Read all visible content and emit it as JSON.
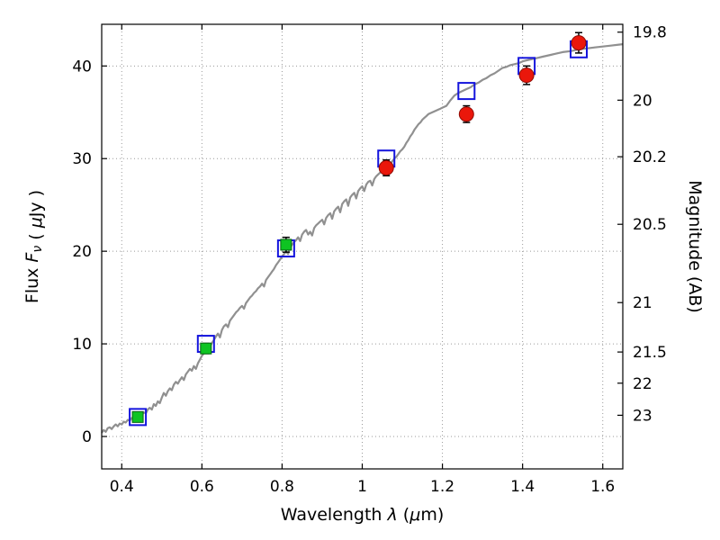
{
  "chart_data": {
    "type": "line",
    "title": "",
    "xlabel_parts": [
      {
        "t": "Wavelength  ",
        "style": "normal"
      },
      {
        "t": "λ",
        "style": "italic"
      },
      {
        "t": " (",
        "style": "normal"
      },
      {
        "t": "μ",
        "style": "italic"
      },
      {
        "t": "m)",
        "style": "normal"
      }
    ],
    "ylabel_left_parts": [
      {
        "t": "Flux  ",
        "style": "normal"
      },
      {
        "t": "F",
        "style": "italic"
      },
      {
        "t": "ν",
        "style": "italic-sub"
      },
      {
        "t": " ( ",
        "style": "normal"
      },
      {
        "t": "μ",
        "style": "italic"
      },
      {
        "t": "Jy )",
        "style": "normal"
      }
    ],
    "ylabel_right_parts": [
      {
        "t": "Magnitude (AB)",
        "style": "normal"
      }
    ],
    "xlim": [
      0.35,
      1.65
    ],
    "ylim": [
      -3.5,
      44.5
    ],
    "x_ticks": [
      0.4,
      0.6,
      0.8,
      1,
      1.2,
      1.4,
      1.6
    ],
    "x_tick_labels": [
      "0.4",
      "0.6",
      "0.8",
      "1",
      "1.2",
      "1.4",
      "1.6"
    ],
    "y_ticks_left": [
      0,
      10,
      20,
      30,
      40
    ],
    "y_tick_labels_left": [
      "0",
      "10",
      "20",
      "30",
      "40"
    ],
    "y_ticks_right_mag": [
      19.8,
      20,
      20.2,
      20.5,
      21,
      21.5,
      22,
      23
    ],
    "y_tick_labels_right": [
      "19.8",
      "20",
      "20.2",
      "20.5",
      "21",
      "21.5",
      "22",
      "23"
    ],
    "mag_zeropoint": 23.9,
    "grid": true,
    "colors": {
      "spectrum": "#909090",
      "model": "#1414dd",
      "optical": "#0ec422",
      "optical_edge": "#056310",
      "nir": "#ea170b",
      "nir_edge": "#8e0b04",
      "errorbar": "#000000",
      "grid": "#9a9a9a",
      "axis": "#000000",
      "background": "#ffffff"
    },
    "series": [
      {
        "name": "model-spectrum",
        "type": "line",
        "points": [
          [
            0.35,
            0.4
          ],
          [
            0.355,
            0.7
          ],
          [
            0.36,
            0.5
          ],
          [
            0.365,
            0.9
          ],
          [
            0.37,
            1.0
          ],
          [
            0.375,
            0.8
          ],
          [
            0.38,
            1.1
          ],
          [
            0.385,
            1.3
          ],
          [
            0.39,
            1.1
          ],
          [
            0.395,
            1.4
          ],
          [
            0.4,
            1.3
          ],
          [
            0.405,
            1.6
          ],
          [
            0.41,
            1.5
          ],
          [
            0.415,
            1.8
          ],
          [
            0.42,
            1.7
          ],
          [
            0.425,
            2.0
          ],
          [
            0.43,
            1.9
          ],
          [
            0.435,
            2.2
          ],
          [
            0.44,
            2.1
          ],
          [
            0.445,
            2.4
          ],
          [
            0.45,
            2.3
          ],
          [
            0.455,
            2.6
          ],
          [
            0.46,
            2.5
          ],
          [
            0.465,
            2.9
          ],
          [
            0.47,
            3.1
          ],
          [
            0.475,
            2.9
          ],
          [
            0.48,
            3.5
          ],
          [
            0.485,
            3.3
          ],
          [
            0.49,
            3.8
          ],
          [
            0.495,
            3.6
          ],
          [
            0.5,
            4.2
          ],
          [
            0.505,
            4.7
          ],
          [
            0.51,
            4.4
          ],
          [
            0.515,
            4.9
          ],
          [
            0.52,
            5.2
          ],
          [
            0.525,
            5.0
          ],
          [
            0.53,
            5.6
          ],
          [
            0.535,
            5.9
          ],
          [
            0.54,
            5.7
          ],
          [
            0.545,
            6.1
          ],
          [
            0.55,
            6.4
          ],
          [
            0.555,
            6.1
          ],
          [
            0.56,
            6.7
          ],
          [
            0.565,
            7.0
          ],
          [
            0.57,
            7.3
          ],
          [
            0.575,
            7.1
          ],
          [
            0.58,
            7.6
          ],
          [
            0.585,
            7.3
          ],
          [
            0.59,
            7.9
          ],
          [
            0.595,
            8.3
          ],
          [
            0.6,
            8.7
          ],
          [
            0.605,
            9.0
          ],
          [
            0.61,
            9.3
          ],
          [
            0.615,
            9.0
          ],
          [
            0.62,
            9.7
          ],
          [
            0.625,
            10.1
          ],
          [
            0.63,
            10.4
          ],
          [
            0.635,
            10.8
          ],
          [
            0.64,
            11.1
          ],
          [
            0.645,
            10.7
          ],
          [
            0.65,
            11.5
          ],
          [
            0.655,
            11.9
          ],
          [
            0.66,
            12.1
          ],
          [
            0.665,
            11.8
          ],
          [
            0.67,
            12.5
          ],
          [
            0.675,
            12.8
          ],
          [
            0.68,
            13.1
          ],
          [
            0.685,
            13.4
          ],
          [
            0.69,
            13.6
          ],
          [
            0.695,
            13.9
          ],
          [
            0.7,
            14.1
          ],
          [
            0.705,
            13.8
          ],
          [
            0.71,
            14.4
          ],
          [
            0.715,
            14.7
          ],
          [
            0.72,
            15.0
          ],
          [
            0.725,
            15.2
          ],
          [
            0.73,
            15.5
          ],
          [
            0.735,
            15.7
          ],
          [
            0.74,
            16.0
          ],
          [
            0.745,
            16.2
          ],
          [
            0.75,
            16.5
          ],
          [
            0.755,
            16.2
          ],
          [
            0.76,
            16.9
          ],
          [
            0.765,
            17.2
          ],
          [
            0.77,
            17.5
          ],
          [
            0.775,
            17.8
          ],
          [
            0.78,
            18.1
          ],
          [
            0.785,
            18.5
          ],
          [
            0.79,
            18.8
          ],
          [
            0.795,
            19.1
          ],
          [
            0.8,
            19.4
          ],
          [
            0.805,
            19.7
          ],
          [
            0.81,
            20.0
          ],
          [
            0.815,
            19.7
          ],
          [
            0.82,
            20.4
          ],
          [
            0.825,
            20.7
          ],
          [
            0.83,
            21.0
          ],
          [
            0.835,
            21.2
          ],
          [
            0.84,
            21.5
          ],
          [
            0.845,
            21.1
          ],
          [
            0.85,
            21.8
          ],
          [
            0.855,
            22.1
          ],
          [
            0.86,
            22.3
          ],
          [
            0.865,
            21.8
          ],
          [
            0.87,
            22.1
          ],
          [
            0.875,
            21.7
          ],
          [
            0.88,
            22.5
          ],
          [
            0.885,
            22.8
          ],
          [
            0.89,
            23.0
          ],
          [
            0.895,
            23.2
          ],
          [
            0.9,
            23.4
          ],
          [
            0.905,
            22.9
          ],
          [
            0.91,
            23.6
          ],
          [
            0.915,
            23.9
          ],
          [
            0.92,
            24.1
          ],
          [
            0.925,
            23.5
          ],
          [
            0.93,
            24.3
          ],
          [
            0.935,
            24.6
          ],
          [
            0.94,
            24.8
          ],
          [
            0.945,
            24.2
          ],
          [
            0.95,
            25.1
          ],
          [
            0.955,
            25.4
          ],
          [
            0.96,
            25.6
          ],
          [
            0.965,
            24.9
          ],
          [
            0.97,
            25.8
          ],
          [
            0.975,
            26.1
          ],
          [
            0.98,
            26.3
          ],
          [
            0.985,
            25.7
          ],
          [
            0.99,
            26.5
          ],
          [
            0.995,
            26.8
          ],
          [
            1.0,
            27.0
          ],
          [
            1.005,
            26.5
          ],
          [
            1.01,
            27.2
          ],
          [
            1.015,
            27.5
          ],
          [
            1.02,
            27.6
          ],
          [
            1.025,
            27.1
          ],
          [
            1.03,
            27.8
          ],
          [
            1.035,
            28.1
          ],
          [
            1.04,
            28.3
          ],
          [
            1.045,
            28.5
          ],
          [
            1.05,
            28.7
          ],
          [
            1.055,
            28.9
          ],
          [
            1.06,
            29.1
          ],
          [
            1.065,
            29.3
          ],
          [
            1.07,
            29.5
          ],
          [
            1.075,
            29.7
          ],
          [
            1.08,
            30.0
          ],
          [
            1.085,
            30.2
          ],
          [
            1.09,
            30.5
          ],
          [
            1.095,
            30.8
          ],
          [
            1.1,
            31.0
          ],
          [
            1.105,
            31.3
          ],
          [
            1.11,
            31.7
          ],
          [
            1.115,
            32.0
          ],
          [
            1.12,
            32.4
          ],
          [
            1.125,
            32.7
          ],
          [
            1.13,
            33.1
          ],
          [
            1.135,
            33.4
          ],
          [
            1.14,
            33.7
          ],
          [
            1.145,
            33.9
          ],
          [
            1.15,
            34.2
          ],
          [
            1.155,
            34.4
          ],
          [
            1.16,
            34.6
          ],
          [
            1.165,
            34.8
          ],
          [
            1.17,
            34.9
          ],
          [
            1.175,
            35.0
          ],
          [
            1.18,
            35.1
          ],
          [
            1.185,
            35.2
          ],
          [
            1.19,
            35.3
          ],
          [
            1.195,
            35.4
          ],
          [
            1.2,
            35.5
          ],
          [
            1.21,
            35.7
          ],
          [
            1.22,
            36.3
          ],
          [
            1.23,
            36.8
          ],
          [
            1.24,
            37.1
          ],
          [
            1.25,
            37.3
          ],
          [
            1.26,
            37.5
          ],
          [
            1.27,
            37.7
          ],
          [
            1.28,
            38.0
          ],
          [
            1.29,
            38.2
          ],
          [
            1.3,
            38.5
          ],
          [
            1.31,
            38.7
          ],
          [
            1.32,
            39.0
          ],
          [
            1.33,
            39.2
          ],
          [
            1.34,
            39.5
          ],
          [
            1.35,
            39.8
          ],
          [
            1.36,
            39.9
          ],
          [
            1.37,
            40.1
          ],
          [
            1.38,
            40.2
          ],
          [
            1.39,
            40.3
          ],
          [
            1.4,
            40.5
          ],
          [
            1.41,
            40.6
          ],
          [
            1.42,
            40.7
          ],
          [
            1.43,
            40.8
          ],
          [
            1.44,
            40.9
          ],
          [
            1.45,
            41.0
          ],
          [
            1.46,
            41.1
          ],
          [
            1.47,
            41.2
          ],
          [
            1.48,
            41.3
          ],
          [
            1.49,
            41.4
          ],
          [
            1.5,
            41.5
          ],
          [
            1.52,
            41.6
          ],
          [
            1.54,
            41.8
          ],
          [
            1.56,
            41.9
          ],
          [
            1.58,
            42.0
          ],
          [
            1.6,
            42.1
          ],
          [
            1.62,
            42.2
          ],
          [
            1.64,
            42.3
          ],
          [
            1.65,
            42.35
          ]
        ]
      },
      {
        "name": "model-photometry",
        "type": "scatter",
        "marker": "open-square",
        "points": [
          [
            0.44,
            2.1
          ],
          [
            0.61,
            10.0
          ],
          [
            0.81,
            20.3
          ],
          [
            1.06,
            30.0
          ],
          [
            1.26,
            37.3
          ],
          [
            1.41,
            40.0
          ],
          [
            1.54,
            41.8
          ]
        ]
      },
      {
        "name": "observed-optical",
        "type": "scatter",
        "marker": "filled-square",
        "points": [
          [
            0.44,
            2.1,
            0.35
          ],
          [
            0.61,
            9.5,
            0.55
          ],
          [
            0.81,
            20.7,
            0.8
          ]
        ]
      },
      {
        "name": "observed-nir",
        "type": "scatter",
        "marker": "filled-circle",
        "points": [
          [
            1.06,
            29.0,
            0.85
          ],
          [
            1.26,
            34.8,
            0.9
          ],
          [
            1.41,
            39.0,
            1.0
          ],
          [
            1.54,
            42.5,
            1.1
          ]
        ]
      }
    ]
  }
}
